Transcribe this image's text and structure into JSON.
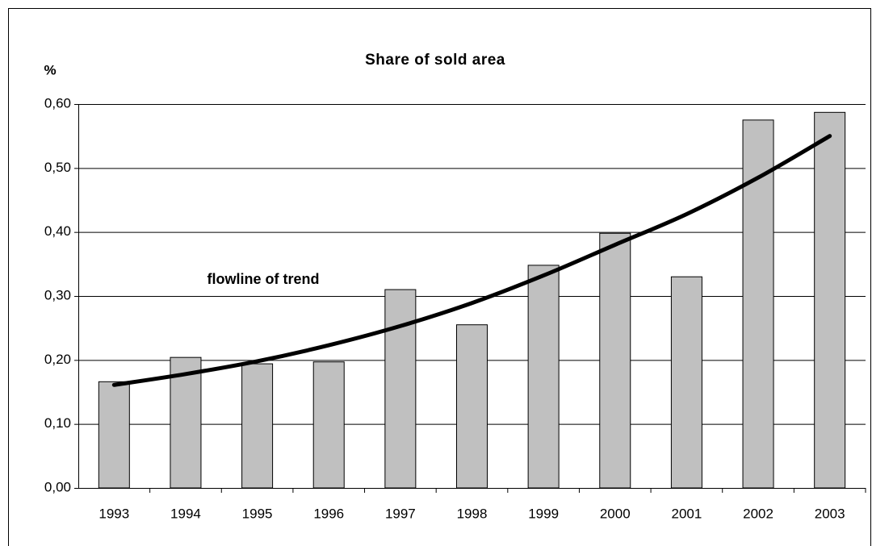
{
  "chart_data": {
    "type": "bar",
    "title": "Share of sold area",
    "y_label": "%",
    "annotation": "flowline of trend",
    "categories": [
      "1993",
      "1994",
      "1995",
      "1996",
      "1997",
      "1998",
      "1999",
      "2000",
      "2001",
      "2002",
      "2003"
    ],
    "values": [
      0.166,
      0.204,
      0.194,
      0.197,
      0.31,
      0.255,
      0.348,
      0.398,
      0.33,
      0.575,
      0.587
    ],
    "color": "#c0c0c0",
    "trend": {
      "color": "#000000",
      "values": [
        0.161,
        0.178,
        0.198,
        0.223,
        0.253,
        0.289,
        0.332,
        0.38,
        0.428,
        0.485,
        0.55
      ]
    },
    "ylim": [
      0,
      0.6
    ],
    "yticks": [
      {
        "value": 0,
        "label": "0,00"
      },
      {
        "value": 0.1,
        "label": "0,10"
      },
      {
        "value": 0.2,
        "label": "0,20"
      },
      {
        "value": 0.3,
        "label": "0,30"
      },
      {
        "value": 0.4,
        "label": "0,40"
      },
      {
        "value": 0.5,
        "label": "0,50"
      },
      {
        "value": 0.6,
        "label": "0,60"
      }
    ],
    "grid": true
  }
}
